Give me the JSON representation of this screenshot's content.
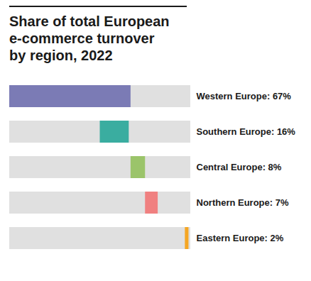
{
  "chart_data": {
    "type": "bar",
    "orientation": "horizontal",
    "title": "Share of total European\ne-commerce turnover\nby region, 2022",
    "categories": [
      "Western Europe: 67%",
      "Southern Europe: 16%",
      "Central Europe: 8%",
      "Northern Europe: 7%",
      "Eastern Europe: 2%"
    ],
    "values": [
      67,
      16,
      8,
      7,
      2
    ],
    "starts": [
      0,
      50,
      67,
      75,
      97
    ],
    "colors": [
      "#7b7bb5",
      "#3aada0",
      "#9bc46a",
      "#f08080",
      "#f5a623"
    ],
    "xlim": [
      0,
      100
    ],
    "grid": false,
    "tick_labels": "y"
  }
}
